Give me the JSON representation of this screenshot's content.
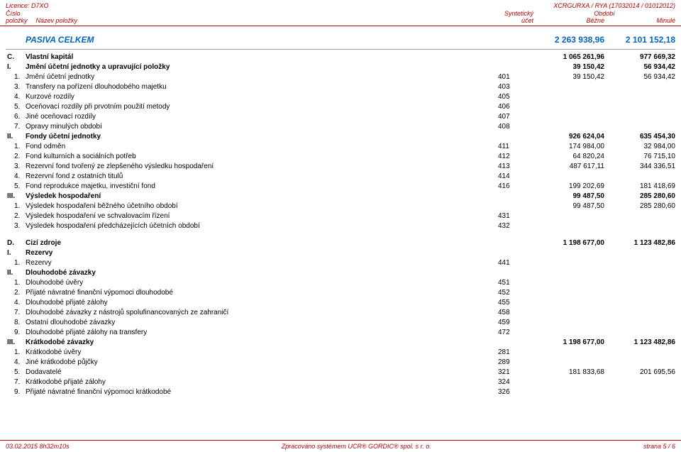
{
  "header": {
    "left": "Licence: D7XO",
    "right": "XCRGURXA / RYA (17032014 / 01012012)"
  },
  "colhead": {
    "cislo": "Číslo",
    "synteticky": "Syntetický",
    "obdobi": "Období",
    "polozky": "položky",
    "nazev": "Název položky",
    "ucet": "účet",
    "bezne": "Běžné",
    "minule": "Minulé"
  },
  "title": {
    "label": "PASIVA CELKEM",
    "amt1": "2 263 938,96",
    "amt2": "2 101 152,18"
  },
  "rows1": [
    {
      "n": "C.",
      "name": "Vlastní kapitál",
      "acct": "",
      "a1": "1 065 261,96",
      "a2": "977 669,32",
      "bold": true
    },
    {
      "n": "I.",
      "name": "Jmění účetní jednotky a upravující položky",
      "acct": "",
      "a1": "39 150,42",
      "a2": "56 934,42",
      "bold": true
    },
    {
      "n": "1.",
      "name": "Jmění účetní jednotky",
      "acct": "401",
      "a1": "39 150,42",
      "a2": "56 934,42",
      "sub": true
    },
    {
      "n": "3.",
      "name": "Transfery na pořízení dlouhodobého majetku",
      "acct": "403",
      "a1": "",
      "a2": "",
      "sub": true
    },
    {
      "n": "4.",
      "name": "Kurzové rozdíly",
      "acct": "405",
      "a1": "",
      "a2": "",
      "sub": true
    },
    {
      "n": "5.",
      "name": "Oceňovací rozdíly při prvotním použití metody",
      "acct": "406",
      "a1": "",
      "a2": "",
      "sub": true
    },
    {
      "n": "6.",
      "name": "Jiné oceňovací rozdíly",
      "acct": "407",
      "a1": "",
      "a2": "",
      "sub": true
    },
    {
      "n": "7.",
      "name": "Opravy minulých období",
      "acct": "408",
      "a1": "",
      "a2": "",
      "sub": true
    },
    {
      "n": "II.",
      "name": "Fondy účetní jednotky",
      "acct": "",
      "a1": "926 624,04",
      "a2": "635 454,30",
      "bold": true
    },
    {
      "n": "1.",
      "name": "Fond odměn",
      "acct": "411",
      "a1": "174 984,00",
      "a2": "32 984,00",
      "sub": true
    },
    {
      "n": "2.",
      "name": "Fond kulturních a sociálních potřeb",
      "acct": "412",
      "a1": "64 820,24",
      "a2": "76 715,10",
      "sub": true
    },
    {
      "n": "3.",
      "name": "Rezervní fond tvořený ze zlepšeného výsledku hospodaření",
      "acct": "413",
      "a1": "487 617,11",
      "a2": "344 336,51",
      "sub": true
    },
    {
      "n": "4.",
      "name": "Rezervní fond z ostatních titulů",
      "acct": "414",
      "a1": "",
      "a2": "",
      "sub": true
    },
    {
      "n": "5.",
      "name": "Fond reprodukce majetku, investiční fond",
      "acct": "416",
      "a1": "199 202,69",
      "a2": "181 418,69",
      "sub": true
    },
    {
      "n": "III.",
      "name": "Výsledek hospodaření",
      "acct": "",
      "a1": "99 487,50",
      "a2": "285 280,60",
      "bold": true
    },
    {
      "n": "1.",
      "name": "Výsledek hospodaření běžného účetního období",
      "acct": "",
      "a1": "99 487,50",
      "a2": "285 280,60",
      "sub": true
    },
    {
      "n": "2.",
      "name": "Výsledek hospodaření ve schvalovacím řízení",
      "acct": "431",
      "a1": "",
      "a2": "",
      "sub": true
    },
    {
      "n": "3.",
      "name": "Výsledek hospodaření předcházejících účetních období",
      "acct": "432",
      "a1": "",
      "a2": "",
      "sub": true
    }
  ],
  "rows2": [
    {
      "n": "D.",
      "name": "Cizí zdroje",
      "acct": "",
      "a1": "1 198 677,00",
      "a2": "1 123 482,86",
      "bold": true
    },
    {
      "n": "I.",
      "name": "Rezervy",
      "acct": "",
      "a1": "",
      "a2": "",
      "bold": true
    },
    {
      "n": "1.",
      "name": "Rezervy",
      "acct": "441",
      "a1": "",
      "a2": "",
      "sub": true
    },
    {
      "n": "II.",
      "name": "Dlouhodobé závazky",
      "acct": "",
      "a1": "",
      "a2": "",
      "bold": true
    },
    {
      "n": "1.",
      "name": "Dlouhodobé úvěry",
      "acct": "451",
      "a1": "",
      "a2": "",
      "sub": true
    },
    {
      "n": "2.",
      "name": "Přijaté návratné finanční výpomoci dlouhodobé",
      "acct": "452",
      "a1": "",
      "a2": "",
      "sub": true
    },
    {
      "n": "4.",
      "name": "Dlouhodobé přijaté zálohy",
      "acct": "455",
      "a1": "",
      "a2": "",
      "sub": true
    },
    {
      "n": "7.",
      "name": "Dlouhodobé závazky z nástrojů spolufinancovaných ze zahraničí",
      "acct": "458",
      "a1": "",
      "a2": "",
      "sub": true
    },
    {
      "n": "8.",
      "name": "Ostatní dlouhodobé závazky",
      "acct": "459",
      "a1": "",
      "a2": "",
      "sub": true
    },
    {
      "n": "9.",
      "name": "Dlouhodobé přijaté zálohy na transfery",
      "acct": "472",
      "a1": "",
      "a2": "",
      "sub": true
    },
    {
      "n": "III.",
      "name": "Krátkodobé závazky",
      "acct": "",
      "a1": "1 198 677,00",
      "a2": "1 123 482,86",
      "bold": true
    },
    {
      "n": "1.",
      "name": "Krátkodobé úvěry",
      "acct": "281",
      "a1": "",
      "a2": "",
      "sub": true
    },
    {
      "n": "4.",
      "name": "Jiné krátkodobé půjčky",
      "acct": "289",
      "a1": "",
      "a2": "",
      "sub": true
    },
    {
      "n": "5.",
      "name": "Dodavatelé",
      "acct": "321",
      "a1": "181 833,68",
      "a2": "201 695,56",
      "sub": true
    },
    {
      "n": "7.",
      "name": "Krátkodobé přijaté zálohy",
      "acct": "324",
      "a1": "",
      "a2": "",
      "sub": true
    },
    {
      "n": "9.",
      "name": "Přijaté návratné finanční výpomoci krátkodobé",
      "acct": "326",
      "a1": "",
      "a2": "",
      "sub": true
    }
  ],
  "footer": {
    "left": "03.02.2015 8h32m10s",
    "center": "Zpracováno systémem UCR® GORDIC® spol. s r. o.",
    "right": "strana 5 / 6"
  }
}
